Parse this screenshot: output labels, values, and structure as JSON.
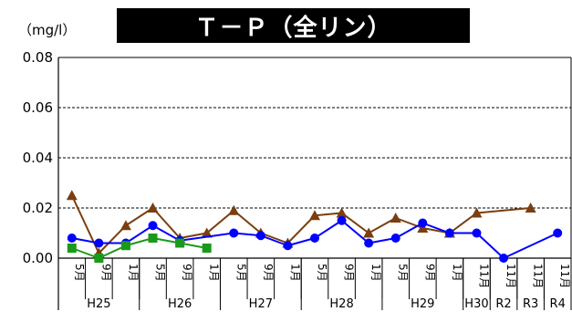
{
  "chart_data": {
    "type": "line",
    "title": "Ｔ－Ｐ（全リン）",
    "unit": "（mg/l）",
    "ylim": [
      0,
      0.08
    ],
    "yticks": [
      "0.00",
      "0.02",
      "0.04",
      "0.06",
      "0.08"
    ],
    "grid": "horizontal dashed",
    "x": [
      "5月",
      "9月",
      "1月",
      "5月",
      "9月",
      "1月",
      "5月",
      "9月",
      "1月",
      "5月",
      "9月",
      "1月",
      "5月",
      "9月",
      "1月",
      "11月",
      "11月",
      "11月",
      "11月"
    ],
    "year_groups": [
      {
        "label": "H25",
        "start": 0,
        "end": 2
      },
      {
        "label": "H26",
        "start": 3,
        "end": 5
      },
      {
        "label": "H27",
        "start": 6,
        "end": 8
      },
      {
        "label": "H28",
        "start": 9,
        "end": 11
      },
      {
        "label": "H29",
        "start": 12,
        "end": 14
      },
      {
        "label": "H30",
        "start": 15,
        "end": 15
      },
      {
        "label": "R2",
        "start": 16,
        "end": 16
      },
      {
        "label": "R3",
        "start": 17,
        "end": 17
      },
      {
        "label": "R4",
        "start": 18,
        "end": 18
      }
    ],
    "series": [
      {
        "color": "#7a3e10",
        "marker": "triangle",
        "values": [
          0.025,
          0.002,
          0.013,
          0.02,
          0.008,
          0.01,
          0.019,
          0.01,
          0.006,
          0.017,
          0.018,
          0.01,
          0.016,
          0.012,
          0.01,
          0.018,
          null,
          0.02,
          null
        ]
      },
      {
        "color": "#0000ff",
        "marker": "circle",
        "values": [
          0.008,
          0.006,
          0.006,
          0.013,
          0.007,
          null,
          0.01,
          0.009,
          0.005,
          0.008,
          0.015,
          0.006,
          0.008,
          0.014,
          0.01,
          0.01,
          0.0,
          null,
          0.01
        ]
      },
      {
        "color": "#1a9a1a",
        "marker": "square",
        "values": [
          0.004,
          0.0,
          0.005,
          0.008,
          0.006,
          0.004,
          null,
          null,
          null,
          null,
          null,
          null,
          null,
          null,
          null,
          null,
          null,
          null,
          null
        ]
      }
    ]
  }
}
